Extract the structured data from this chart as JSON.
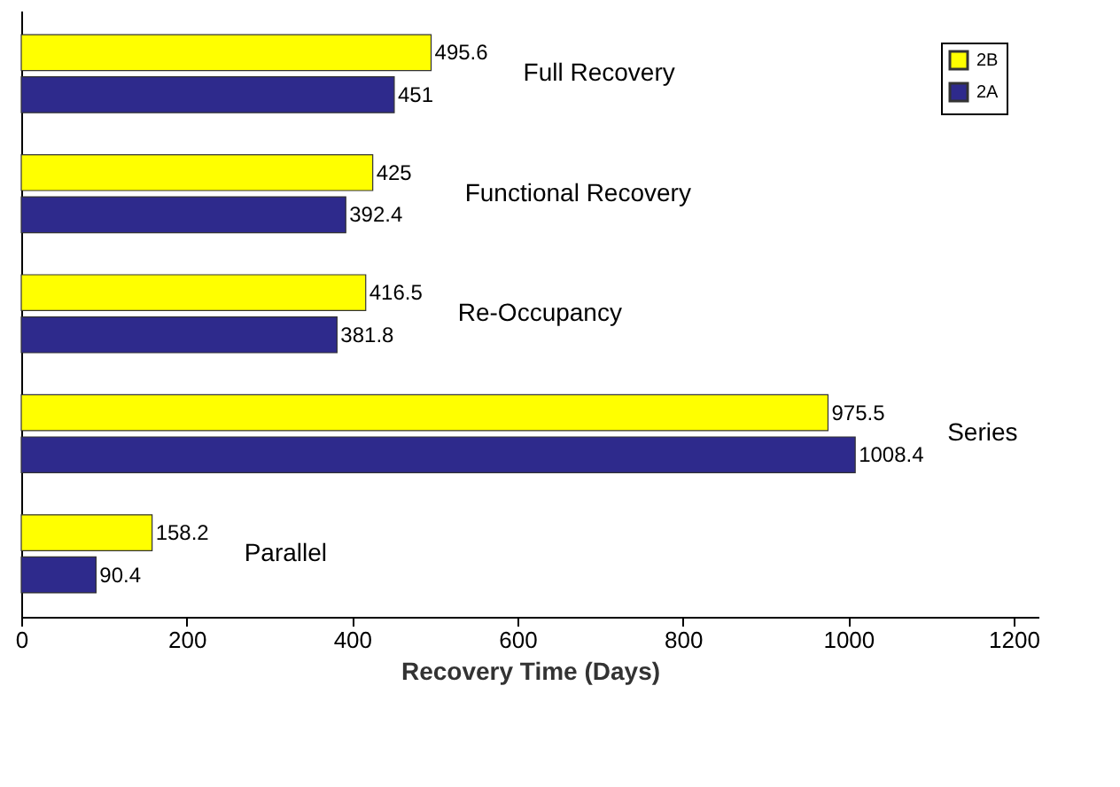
{
  "chart_data": {
    "type": "bar",
    "orientation": "horizontal",
    "xlabel": "Recovery Time (Days)",
    "categories": [
      "Full Recovery",
      "Functional Recovery",
      "Re-Occupancy",
      "Series",
      "Parallel"
    ],
    "series": [
      {
        "name": "2B",
        "color": "#ffff00",
        "values": [
          495.6,
          425,
          416.5,
          975.5,
          158.2
        ]
      },
      {
        "name": "2A",
        "color": "#2e2a8c",
        "values": [
          451,
          392.4,
          381.8,
          1008.4,
          90.4
        ]
      }
    ],
    "xlim": [
      0,
      1230
    ],
    "xticks": [
      0,
      200,
      400,
      600,
      800,
      1000,
      1200
    ],
    "data_labels": true,
    "legend": "top right",
    "grid": false,
    "tick_labels": "x"
  }
}
